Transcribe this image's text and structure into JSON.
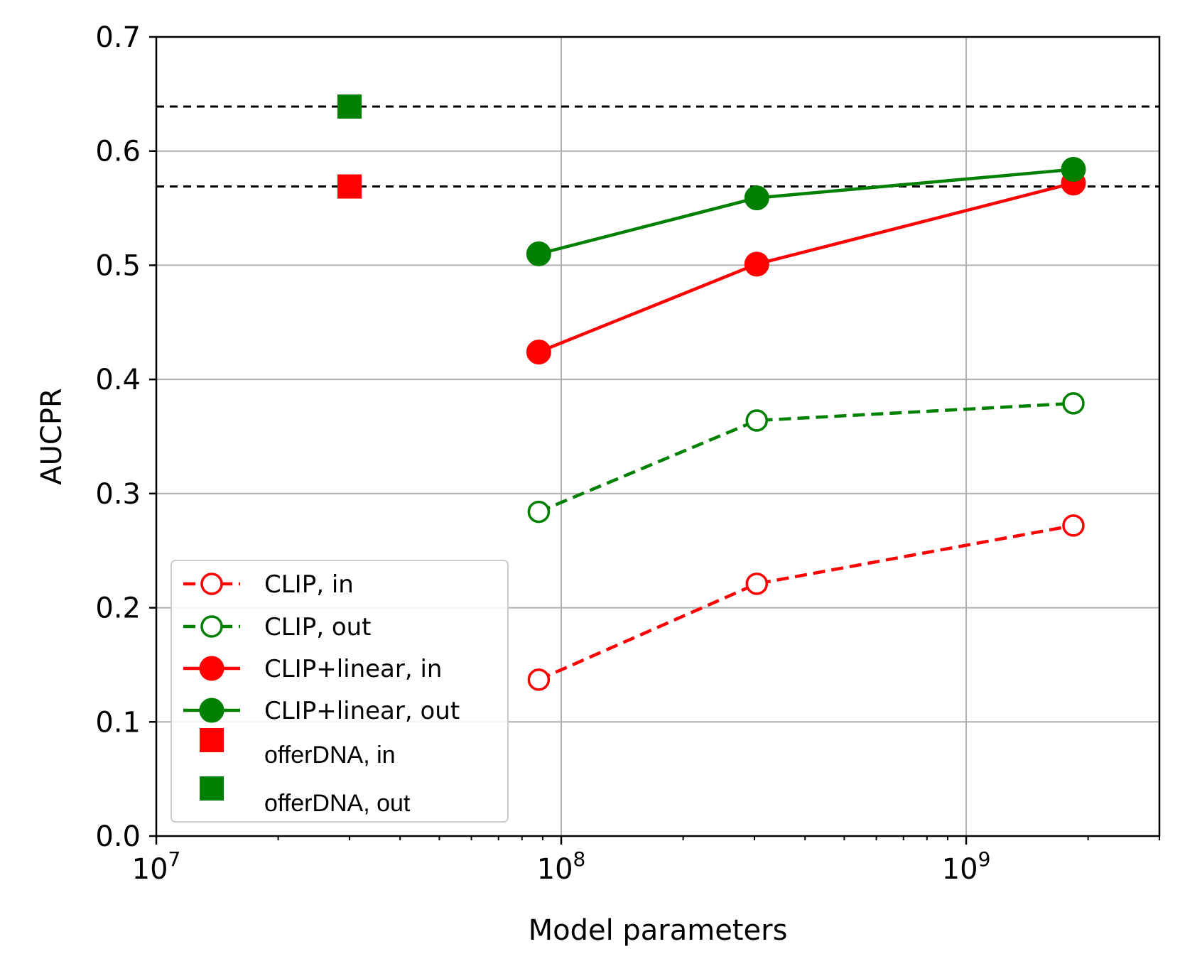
{
  "chart_data": {
    "type": "line",
    "xlabel": "Model parameters",
    "ylabel": "AUCPR",
    "xscale": "log",
    "xlim": [
      10000000,
      3000000000
    ],
    "ylim": [
      0.0,
      0.7
    ],
    "yticks": [
      0.0,
      0.1,
      0.2,
      0.3,
      0.4,
      0.5,
      0.6,
      0.7
    ],
    "xticks_major": [
      {
        "value": 10000000,
        "base": "10",
        "exp": "7"
      },
      {
        "value": 100000000,
        "base": "10",
        "exp": "8"
      },
      {
        "value": 1000000000,
        "base": "10",
        "exp": "9"
      }
    ],
    "grid": true,
    "legend_position": "lower-left",
    "reference_lines": [
      {
        "y": 0.639,
        "style": "dashed",
        "color": "#000000"
      },
      {
        "y": 0.569,
        "style": "dashed",
        "color": "#000000"
      }
    ],
    "series": [
      {
        "name": "CLIP, in",
        "color": "#ff0000",
        "line": "dashed",
        "marker": "open-circle",
        "x": [
          88000000,
          304000000,
          1840000000
        ],
        "y": [
          0.137,
          0.221,
          0.272
        ]
      },
      {
        "name": "CLIP, out",
        "color": "#008000",
        "line": "dashed",
        "marker": "open-circle",
        "x": [
          88000000,
          304000000,
          1840000000
        ],
        "y": [
          0.284,
          0.364,
          0.379
        ]
      },
      {
        "name": "CLIP+linear, in",
        "color": "#ff0000",
        "line": "solid",
        "marker": "filled-circle",
        "x": [
          88000000,
          304000000,
          1840000000
        ],
        "y": [
          0.424,
          0.501,
          0.572
        ]
      },
      {
        "name": "CLIP+linear, out",
        "color": "#008000",
        "line": "solid",
        "marker": "filled-circle",
        "x": [
          88000000,
          304000000,
          1840000000
        ],
        "y": [
          0.51,
          0.559,
          0.584
        ]
      },
      {
        "name": "offerDNA, in",
        "color": "#ff0000",
        "line": "none",
        "marker": "square",
        "x": [
          30000000
        ],
        "y": [
          0.569
        ]
      },
      {
        "name": "offerDNA, out",
        "color": "#008000",
        "line": "none",
        "marker": "square",
        "x": [
          30000000
        ],
        "y": [
          0.639
        ]
      }
    ]
  }
}
